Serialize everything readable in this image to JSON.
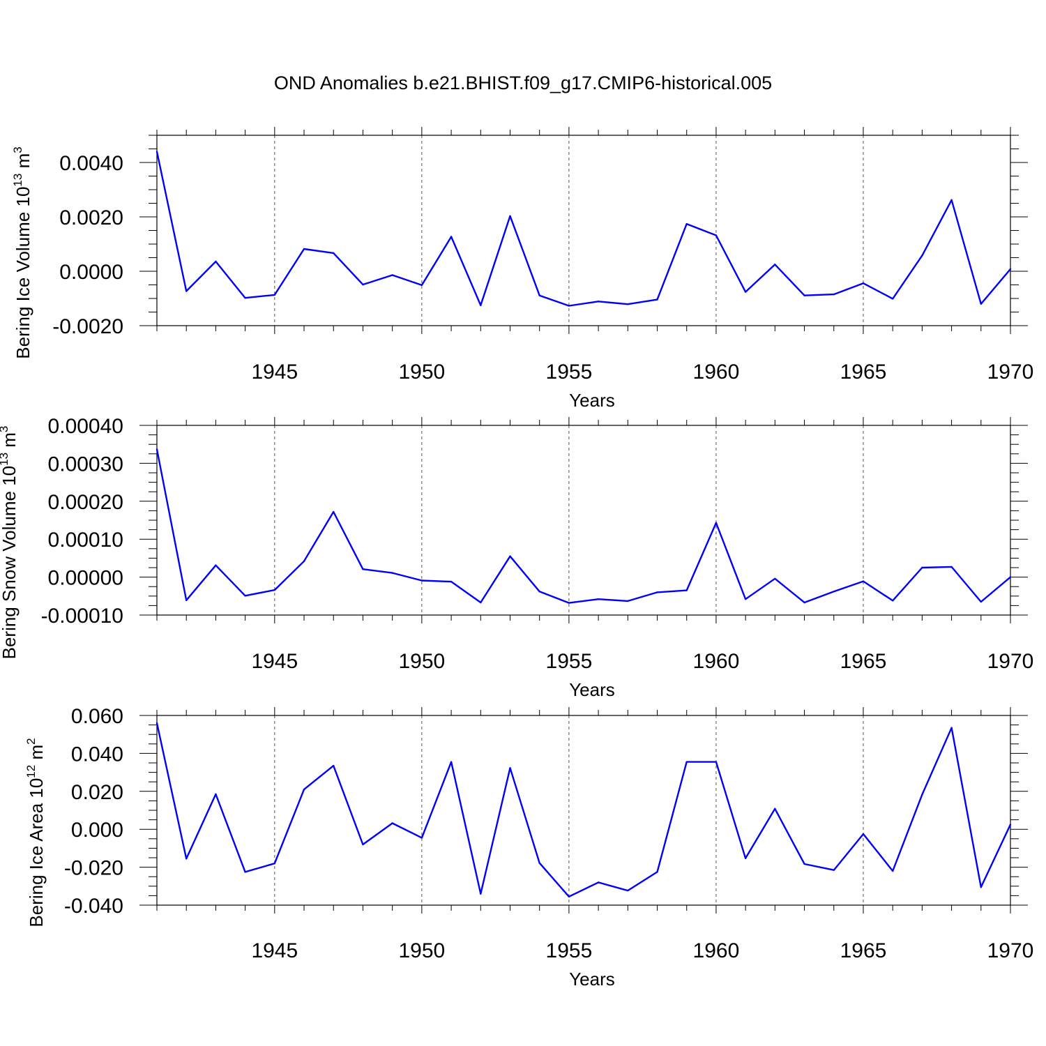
{
  "title": "OND Anomalies b.e21.BHIST.f09_g17.CMIP6-historical.005",
  "colors": {
    "line": "#0000ff",
    "axis": "#000000",
    "grid": "#555555"
  },
  "chart_data": [
    {
      "type": "line",
      "ylabel": "Bering Ice Volume 10",
      "ylabel_sup1": "13",
      "ylabel_mid": " m",
      "ylabel_sup2": "3",
      "xlabel": "Years",
      "xlim": [
        1941,
        1970
      ],
      "ylim": [
        -0.002,
        0.005
      ],
      "yticks": [
        -0.002,
        0.0,
        0.002,
        0.004
      ],
      "yticklabels": [
        "-0.0020",
        "0.0000",
        "0.0020",
        "0.0040"
      ],
      "xticks": [
        1945,
        1950,
        1955,
        1960,
        1965,
        1970
      ],
      "xticklabels": [
        "1945",
        "1950",
        "1955",
        "1960",
        "1965",
        "1970"
      ],
      "x": [
        1941,
        1942,
        1943,
        1944,
        1945,
        1946,
        1947,
        1948,
        1949,
        1950,
        1951,
        1952,
        1953,
        1954,
        1955,
        1956,
        1957,
        1958,
        1959,
        1960,
        1961,
        1962,
        1963,
        1964,
        1965,
        1966,
        1967,
        1968,
        1969,
        1970
      ],
      "values": [
        0.0044,
        -0.00073,
        0.00036,
        -0.00098,
        -0.00087,
        0.00082,
        0.00067,
        -0.00049,
        -0.00014,
        -0.00051,
        0.00127,
        -0.00125,
        0.00203,
        -0.00089,
        -0.00127,
        -0.00111,
        -0.00121,
        -0.00104,
        0.00174,
        0.00132,
        -0.00076,
        0.00025,
        -0.00089,
        -0.00085,
        -0.00044,
        -0.00101,
        0.00058,
        0.00262,
        -0.0012,
        8e-05
      ]
    },
    {
      "type": "line",
      "ylabel": "Bering Snow Volume 10",
      "ylabel_sup1": "13",
      "ylabel_mid": " m",
      "ylabel_sup2": "3",
      "xlabel": "Years",
      "xlim": [
        1941,
        1970
      ],
      "ylim": [
        -0.0001,
        0.0004
      ],
      "yticks": [
        -0.0001,
        0.0,
        0.0001,
        0.0002,
        0.0003,
        0.0004
      ],
      "yticklabels": [
        "-0.00010",
        "0.00000",
        "0.00010",
        "0.00020",
        "0.00030",
        "0.00040"
      ],
      "xticks": [
        1945,
        1950,
        1955,
        1960,
        1965,
        1970
      ],
      "xticklabels": [
        "1945",
        "1950",
        "1955",
        "1960",
        "1965",
        "1970"
      ],
      "x": [
        1941,
        1942,
        1943,
        1944,
        1945,
        1946,
        1947,
        1948,
        1949,
        1950,
        1951,
        1952,
        1953,
        1954,
        1955,
        1956,
        1957,
        1958,
        1959,
        1960,
        1961,
        1962,
        1963,
        1964,
        1965,
        1966,
        1967,
        1968,
        1969,
        1970
      ],
      "values": [
        0.000337,
        -6.1e-05,
        3.1e-05,
        -4.9e-05,
        -3.4e-05,
        4.2e-05,
        0.000172,
        2.1e-05,
        1.1e-05,
        -9e-06,
        -1.2e-05,
        -6.7e-05,
        5.5e-05,
        -3.8e-05,
        -6.8e-05,
        -5.8e-05,
        -6.3e-05,
        -4e-05,
        -3.5e-05,
        0.000143,
        -5.8e-05,
        -4e-06,
        -6.7e-05,
        -3.8e-05,
        -1.1e-05,
        -6.2e-05,
        2.5e-05,
        2.7e-05,
        -6.5e-05,
        0.0
      ]
    },
    {
      "type": "line",
      "ylabel": "Bering Ice Area 10",
      "ylabel_sup1": "12",
      "ylabel_mid": " m",
      "ylabel_sup2": "2",
      "xlabel": "Years",
      "xlim": [
        1941,
        1970
      ],
      "ylim": [
        -0.04,
        0.06
      ],
      "yticks": [
        -0.04,
        -0.02,
        0.0,
        0.02,
        0.04,
        0.06
      ],
      "yticklabels": [
        "-0.040",
        "-0.020",
        "0.000",
        "0.020",
        "0.040",
        "0.060"
      ],
      "xticks": [
        1945,
        1950,
        1955,
        1960,
        1965,
        1970
      ],
      "xticklabels": [
        "1945",
        "1950",
        "1955",
        "1960",
        "1965",
        "1970"
      ],
      "x": [
        1941,
        1942,
        1943,
        1944,
        1945,
        1946,
        1947,
        1948,
        1949,
        1950,
        1951,
        1952,
        1953,
        1954,
        1955,
        1956,
        1957,
        1958,
        1959,
        1960,
        1961,
        1962,
        1963,
        1964,
        1965,
        1966,
        1967,
        1968,
        1969,
        1970
      ],
      "values": [
        0.056,
        -0.0155,
        0.0185,
        -0.0225,
        -0.018,
        0.021,
        0.0335,
        -0.008,
        0.0032,
        -0.0045,
        0.0355,
        -0.034,
        0.0323,
        -0.0178,
        -0.0355,
        -0.028,
        -0.0323,
        -0.0225,
        0.0355,
        0.0355,
        -0.0153,
        0.0108,
        -0.0183,
        -0.0215,
        -0.0025,
        -0.022,
        0.0183,
        0.0535,
        -0.0305,
        0.0025
      ]
    }
  ]
}
